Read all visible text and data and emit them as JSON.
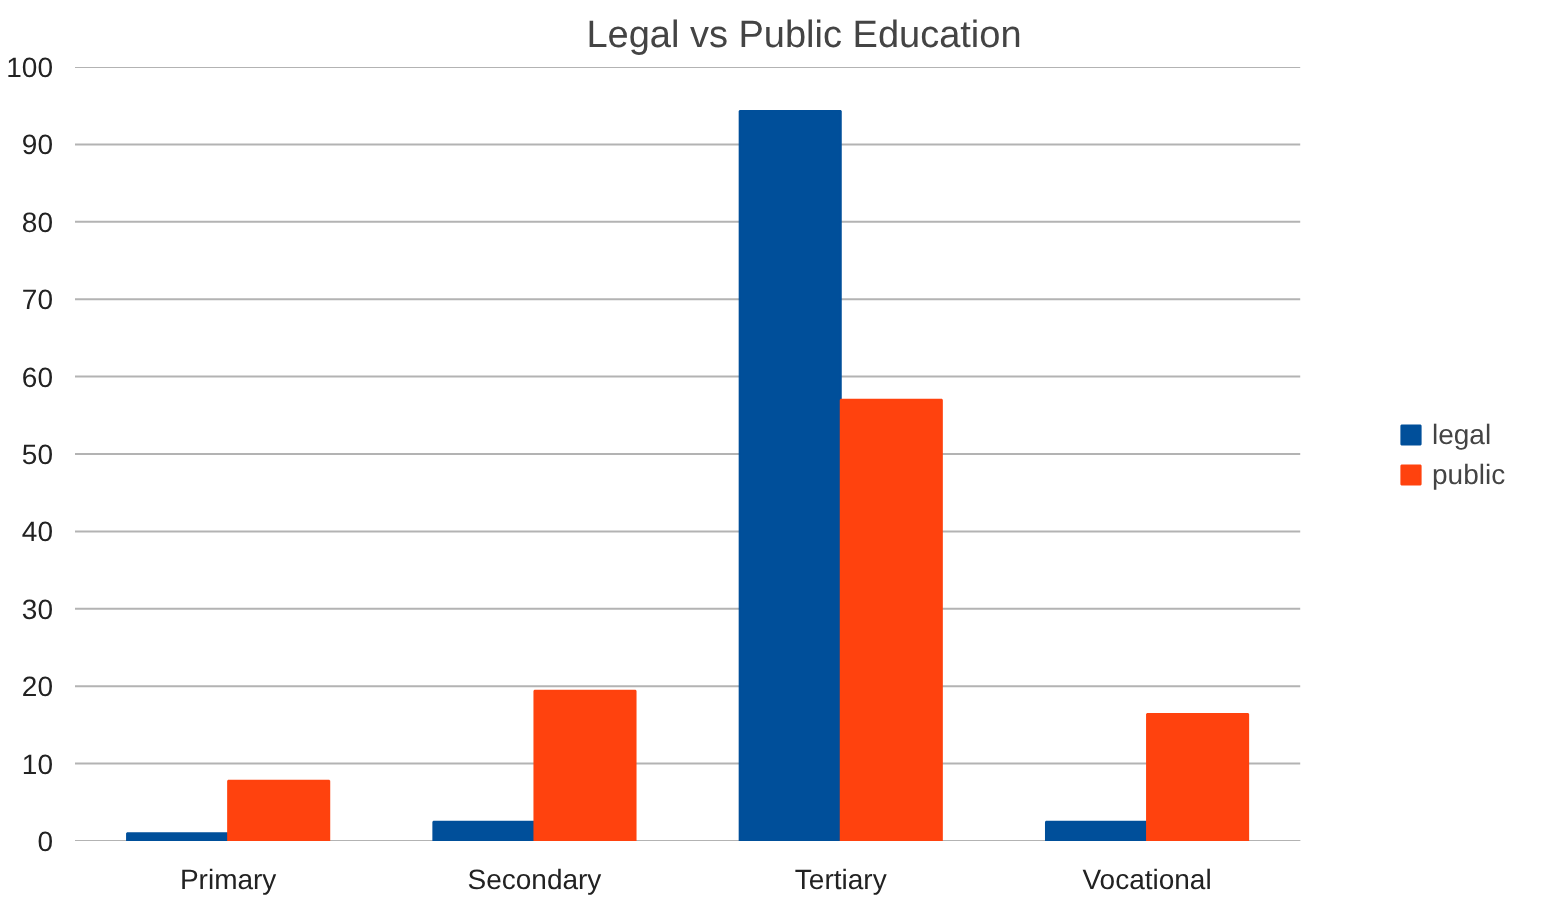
{
  "chart_data": {
    "type": "bar",
    "title": "Legal vs Public Education",
    "categories": [
      "Primary",
      "Secondary",
      "Tertiary",
      "Vocational"
    ],
    "series": [
      {
        "name": "legal",
        "color": "#004f9a",
        "values": [
          1,
          2.5,
          94.3,
          2.5
        ]
      },
      {
        "name": "public",
        "color": "#ff420e",
        "values": [
          7.8,
          19.4,
          57,
          16.4
        ]
      }
    ],
    "ylim": [
      0,
      100
    ],
    "yticks": [
      0,
      10,
      20,
      30,
      40,
      50,
      60,
      70,
      80,
      90,
      100
    ],
    "grid": "y",
    "legend": "right"
  }
}
